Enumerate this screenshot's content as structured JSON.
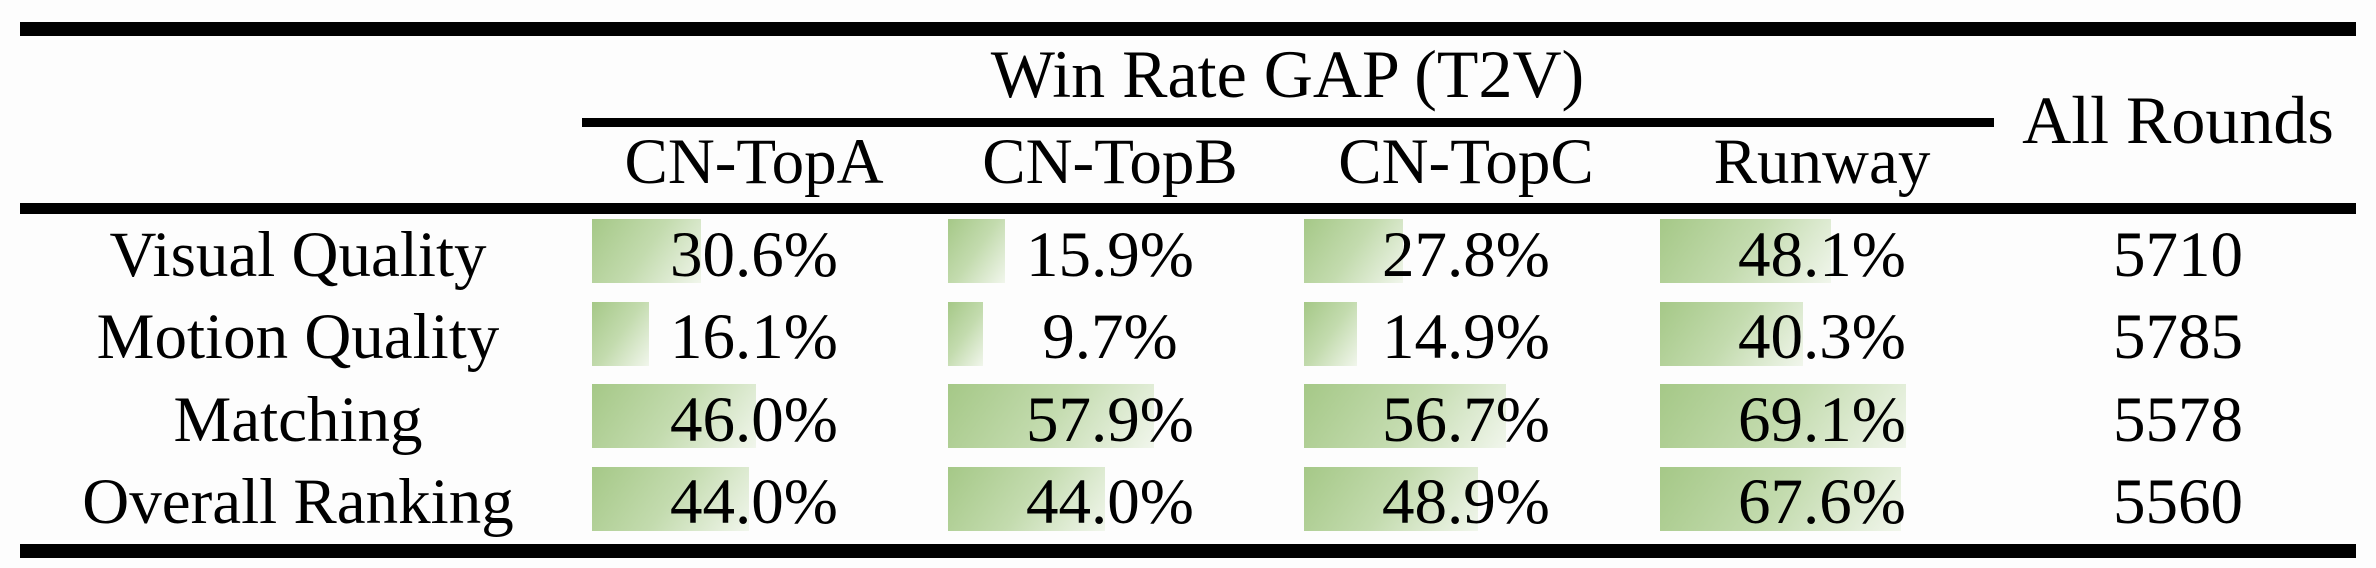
{
  "table": {
    "group_header": "Win Rate GAP (T2V)",
    "all_rounds_header": "All Rounds",
    "columns": [
      "CN-TopA",
      "CN-TopB",
      "CN-TopC",
      "Runway"
    ],
    "rows": [
      {
        "label": "Visual Quality",
        "win_rate_gap_pct": [
          30.6,
          15.9,
          27.8,
          48.1
        ],
        "all_rounds": "5710"
      },
      {
        "label": "Motion Quality",
        "win_rate_gap_pct": [
          16.1,
          9.7,
          14.9,
          40.3
        ],
        "all_rounds": "5785"
      },
      {
        "label": "Matching",
        "win_rate_gap_pct": [
          46.0,
          57.9,
          56.7,
          69.1
        ],
        "all_rounds": "5578"
      },
      {
        "label": "Overall Ranking",
        "win_rate_gap_pct": [
          44.0,
          44.0,
          48.9,
          67.6
        ],
        "all_rounds": "5560"
      }
    ],
    "value_suffix": "%"
  },
  "chart_data": {
    "type": "table",
    "title": "Win Rate GAP (T2V)",
    "columns": [
      "CN-TopA",
      "CN-TopB",
      "CN-TopC",
      "Runway",
      "All Rounds"
    ],
    "row_labels": [
      "Visual Quality",
      "Motion Quality",
      "Matching",
      "Overall Ranking"
    ],
    "series": [
      {
        "name": "CN-TopA",
        "values": [
          30.6,
          16.1,
          46.0,
          44.0
        ]
      },
      {
        "name": "CN-TopB",
        "values": [
          15.9,
          9.7,
          57.9,
          44.0
        ]
      },
      {
        "name": "CN-TopC",
        "values": [
          27.8,
          14.9,
          56.7,
          48.9
        ]
      },
      {
        "name": "Runway",
        "values": [
          48.1,
          40.3,
          69.1,
          67.6
        ]
      }
    ],
    "all_rounds": [
      5710,
      5785,
      5578,
      5560
    ],
    "unit": "%",
    "bar_style": "in-cell horizontal green gradient bars, length proportional to percentage of cell width"
  },
  "colors": {
    "bar_gradient_start": "#a5c887",
    "bar_gradient_mid": "#c3dbae",
    "bar_gradient_end": "#f1f6ec",
    "rule_color": "#000000",
    "text_color": "#000000",
    "background": "#fdfdfd"
  }
}
